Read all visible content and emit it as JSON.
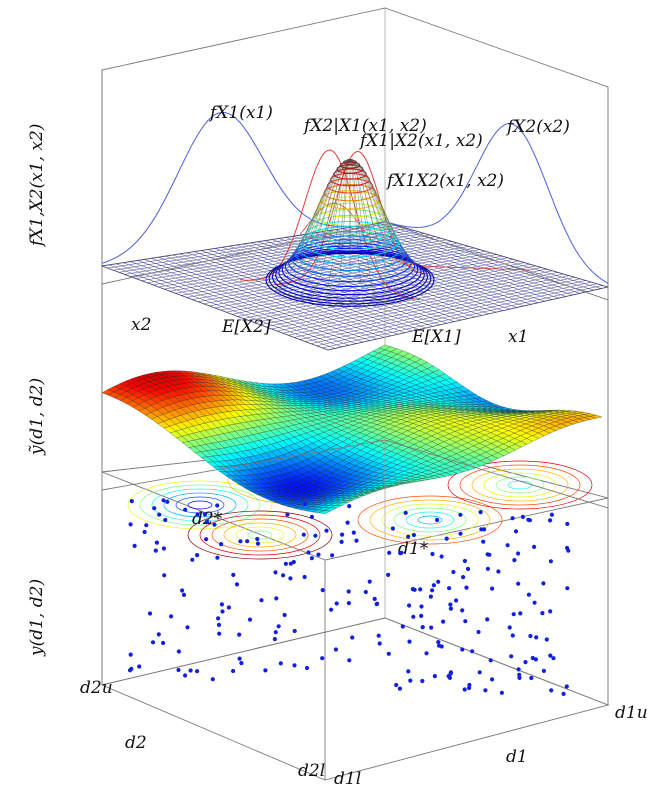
{
  "figure": {
    "panels": {
      "top": {
        "ylabel": "f_{X1,X2}(x1,x2)",
        "ylabel_display": "fX1,X2(x1, x2)",
        "curve_labels": {
          "fx1": "fX1(x1)",
          "fx2_given_x1": "fX2|X1(x1, x2)",
          "fx1_given_x2": "fX1|X2(x1, x2)",
          "fx2": "fX2(x2)",
          "fx1x2": "fX1X2(x1, x2)"
        },
        "axis_labels": {
          "x2": "x2",
          "x1": "x1",
          "ex2": "E[X2]",
          "ex1": "E[X1]"
        },
        "colors": {
          "marginal": "#4a5ee0",
          "conditional": "#e03c3c",
          "joint": "#303030"
        }
      },
      "middle": {
        "ylabel": "ỹ(d1, d2)",
        "labels": {
          "d2_star": "d2*",
          "d1_star": "d1*"
        },
        "colormap": "jet"
      },
      "bottom": {
        "ylabel": "y(d1, d2)",
        "labels": {
          "d2_upper": "d2u",
          "d2_lower": "d2l",
          "d1_upper": "d1u",
          "d1_lower": "d1l",
          "d2_axis": "d2",
          "d1_axis": "d1"
        },
        "point_color": "#1020e0"
      }
    }
  }
}
